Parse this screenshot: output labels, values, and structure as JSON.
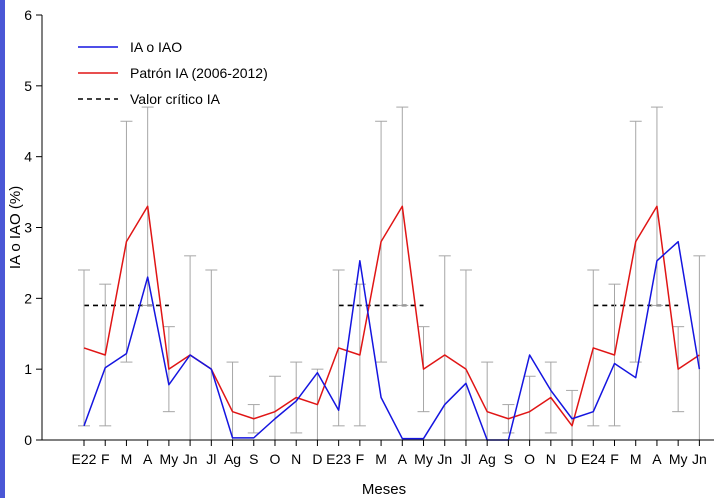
{
  "colors": {
    "sidebar_accent": "#4a57d6",
    "series_ia": "#1515e0",
    "series_patron": "#e01515",
    "errorbar": "#a6a6a6",
    "critical": "#000000"
  },
  "chart_data": {
    "type": "line",
    "title": "",
    "xlabel": "Meses",
    "ylabel": "IA o IAO (%)",
    "ylim": [
      0,
      6
    ],
    "yticks": [
      "0",
      "1",
      "2",
      "3",
      "4",
      "5",
      "6"
    ],
    "categories": [
      "E22",
      "F",
      "M",
      "A",
      "My",
      "Jn",
      "Jl",
      "Ag",
      "S",
      "O",
      "N",
      "D",
      "E23",
      "F",
      "M",
      "A",
      "My",
      "Jn",
      "Jl",
      "Ag",
      "S",
      "O",
      "N",
      "D",
      "E24",
      "F",
      "M",
      "A",
      "My",
      "Jn"
    ],
    "legend_position": "top-left",
    "series": [
      {
        "name": "IA o IAO",
        "color": "#1515e0",
        "values": [
          0.2,
          1.02,
          1.22,
          2.3,
          0.78,
          1.2,
          1.0,
          0.03,
          0.03,
          0.3,
          0.55,
          0.95,
          0.42,
          2.53,
          0.6,
          0.02,
          0.02,
          0.5,
          0.8,
          0.0,
          0.0,
          1.2,
          0.7,
          0.3,
          0.4,
          1.08,
          0.88,
          2.53,
          2.8,
          1.0
        ]
      },
      {
        "name": "Patrón IA (2006-2012)",
        "color": "#e01515",
        "values": [
          1.3,
          1.2,
          2.8,
          3.3,
          1.0,
          1.2,
          1.0,
          0.4,
          0.3,
          0.4,
          0.6,
          0.5,
          1.3,
          1.2,
          2.8,
          3.3,
          1.0,
          1.2,
          1.0,
          0.4,
          0.3,
          0.4,
          0.6,
          0.2,
          1.3,
          1.2,
          2.8,
          3.3,
          1.0,
          1.2
        ]
      }
    ],
    "error_bars": {
      "color": "#a6a6a6",
      "low": [
        0.2,
        0.2,
        1.1,
        1.9,
        0.4,
        0.0,
        0.0,
        0.0,
        0.1,
        0.0,
        0.1,
        0.0,
        0.2,
        0.2,
        1.1,
        1.9,
        0.4,
        0.0,
        0.0,
        0.0,
        0.1,
        0.0,
        0.1,
        0.0,
        0.2,
        0.2,
        1.1,
        1.9,
        0.4,
        0.0
      ],
      "high": [
        2.4,
        2.2,
        4.5,
        4.7,
        1.6,
        2.6,
        2.4,
        1.1,
        0.5,
        0.9,
        1.1,
        1.0,
        2.4,
        2.2,
        4.5,
        4.7,
        1.6,
        2.6,
        2.4,
        1.1,
        0.5,
        0.9,
        1.1,
        0.7,
        2.4,
        2.2,
        4.5,
        4.7,
        1.6,
        2.6
      ]
    },
    "critical_value": {
      "name": "Valor crítico IA",
      "value": 1.9,
      "segments": [
        [
          0,
          4
        ],
        [
          12,
          16
        ],
        [
          24,
          28
        ]
      ],
      "style": "dashed"
    }
  }
}
